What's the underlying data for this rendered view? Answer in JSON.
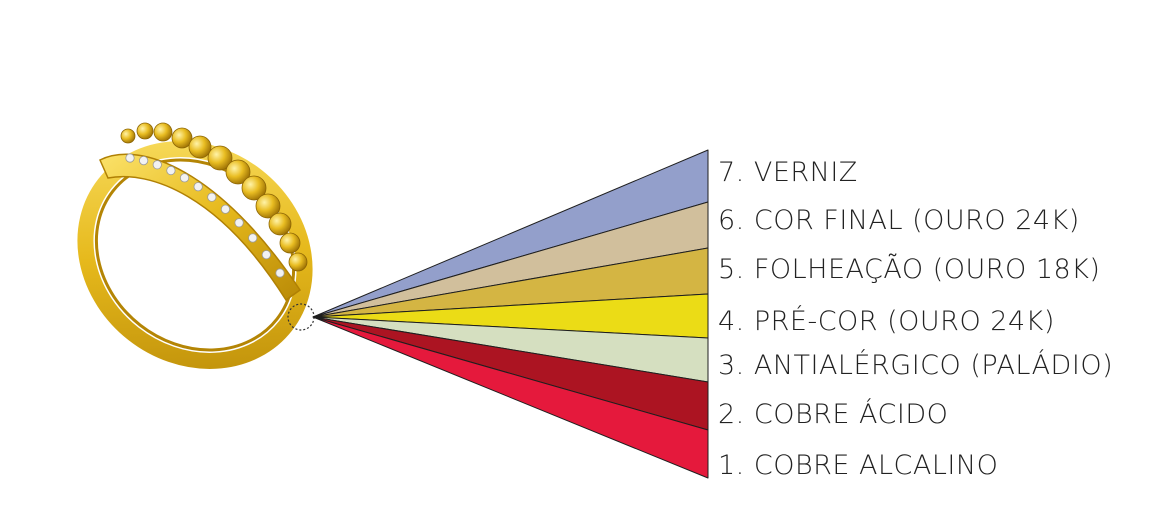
{
  "layers": [
    {
      "number": 7,
      "label": "7. VERNIZ",
      "color": "#939fcb"
    },
    {
      "number": 6,
      "label": "6. COR FINAL (OURO 24K)",
      "color": "#d1bf9c"
    },
    {
      "number": 5,
      "label": "5. FOLHEAÇÃO (OURO 18K)",
      "color": "#d4b543"
    },
    {
      "number": 4,
      "label": "4. PRÉ-COR (OURO 24K)",
      "color": "#ebdc16"
    },
    {
      "number": 3,
      "label": "3. ANTIALÉRGICO (PALÁDIO)",
      "color": "#d5dfc0"
    },
    {
      "number": 2,
      "label": "2. COBRE ÁCIDO",
      "color": "#ac1422"
    },
    {
      "number": 1,
      "label": "1. COBRE ALCALINO",
      "color": "#e5193c"
    }
  ],
  "ring": {
    "metal_color": "#e6b91c",
    "highlight_color": "#fbe26a",
    "stone_color": "#f2f2f2"
  }
}
